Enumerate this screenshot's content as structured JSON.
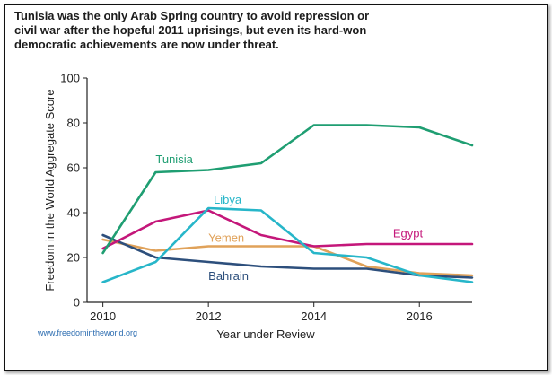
{
  "title_lines": [
    "Tunisia was the only Arab Spring country to avoid repression or",
    "civil war after the hopeful 2011 uprisings, but even its hard-won",
    "democratic achievements are now under threat."
  ],
  "source": "www.freedomintheworld.org",
  "chart_data": {
    "type": "line",
    "title": "Tunisia was the only Arab Spring country to avoid repression or civil war after the hopeful 2011 uprisings, but even its hard-won democratic achievements are now under threat.",
    "xlabel": "Year under Review",
    "ylabel": "Freedom in the World Aggregate Score",
    "xlim": [
      2009.7,
      2017
    ],
    "ylim": [
      0,
      100
    ],
    "x_ticks": [
      2010,
      2012,
      2014,
      2016
    ],
    "y_ticks": [
      0,
      20,
      40,
      60,
      80,
      100
    ],
    "grid": false,
    "legend": "inline labels",
    "x": [
      2010,
      2011,
      2012,
      2013,
      2014,
      2015,
      2016,
      2017
    ],
    "series": [
      {
        "name": "Tunisia",
        "color": "#1f9e72",
        "values": [
          22,
          58,
          59,
          62,
          79,
          79,
          78,
          70
        ]
      },
      {
        "name": "Libya",
        "color": "#27b6c9",
        "values": [
          9,
          18,
          42,
          41,
          22,
          20,
          12,
          9
        ]
      },
      {
        "name": "Egypt",
        "color": "#c4177a",
        "values": [
          24,
          36,
          41,
          30,
          25,
          26,
          26,
          26
        ]
      },
      {
        "name": "Yemen",
        "color": "#e0a25a",
        "values": [
          28,
          23,
          25,
          25,
          25,
          16,
          13,
          12
        ]
      },
      {
        "name": "Bahrain",
        "color": "#2d4f7c",
        "values": [
          30,
          20,
          18,
          16,
          15,
          15,
          12,
          11
        ]
      }
    ]
  }
}
